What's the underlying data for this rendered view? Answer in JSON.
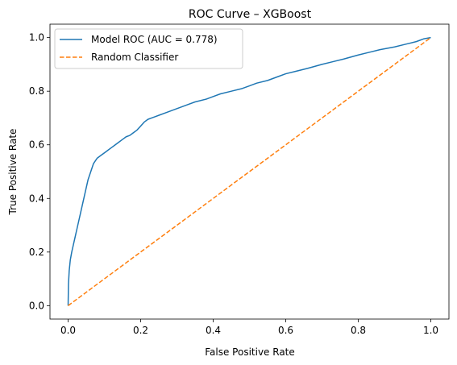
{
  "chart_data": {
    "type": "line",
    "title": "ROC Curve – XGBoost",
    "xlabel": "False Positive Rate",
    "ylabel": "True Positive Rate",
    "xlim": [
      -0.05,
      1.05
    ],
    "ylim": [
      -0.05,
      1.05
    ],
    "xticks": [
      0.0,
      0.2,
      0.4,
      0.6,
      0.8,
      1.0
    ],
    "yticks": [
      0.0,
      0.2,
      0.4,
      0.6,
      0.8,
      1.0
    ],
    "xtick_labels": [
      "0.0",
      "0.2",
      "0.4",
      "0.6",
      "0.8",
      "1.0"
    ],
    "ytick_labels": [
      "0.0",
      "0.2",
      "0.4",
      "0.6",
      "0.8",
      "1.0"
    ],
    "grid": false,
    "legend_position": "upper-left",
    "series": [
      {
        "name": "Model ROC (AUC = 0.778)",
        "color": "#1f77b4",
        "style": "solid",
        "x": [
          0.0,
          0.001,
          0.003,
          0.006,
          0.01,
          0.015,
          0.02,
          0.025,
          0.03,
          0.035,
          0.04,
          0.045,
          0.05,
          0.055,
          0.06,
          0.065,
          0.07,
          0.075,
          0.08,
          0.09,
          0.1,
          0.11,
          0.12,
          0.13,
          0.14,
          0.15,
          0.16,
          0.17,
          0.18,
          0.19,
          0.2,
          0.21,
          0.22,
          0.23,
          0.24,
          0.25,
          0.27,
          0.3,
          0.33,
          0.35,
          0.38,
          0.4,
          0.42,
          0.45,
          0.48,
          0.5,
          0.52,
          0.55,
          0.58,
          0.6,
          0.63,
          0.66,
          0.7,
          0.73,
          0.76,
          0.8,
          0.83,
          0.86,
          0.9,
          0.93,
          0.96,
          0.98,
          1.0
        ],
        "y": [
          0.0,
          0.08,
          0.13,
          0.17,
          0.2,
          0.23,
          0.26,
          0.29,
          0.32,
          0.35,
          0.38,
          0.41,
          0.44,
          0.47,
          0.49,
          0.51,
          0.53,
          0.54,
          0.55,
          0.56,
          0.57,
          0.58,
          0.59,
          0.6,
          0.61,
          0.62,
          0.63,
          0.635,
          0.645,
          0.655,
          0.67,
          0.685,
          0.695,
          0.7,
          0.705,
          0.71,
          0.72,
          0.735,
          0.75,
          0.76,
          0.77,
          0.78,
          0.79,
          0.8,
          0.81,
          0.82,
          0.83,
          0.84,
          0.855,
          0.865,
          0.875,
          0.885,
          0.9,
          0.91,
          0.92,
          0.935,
          0.945,
          0.955,
          0.965,
          0.975,
          0.985,
          0.995,
          1.0
        ]
      },
      {
        "name": "Random Classifier",
        "color": "#ff7f0e",
        "style": "dashed",
        "x": [
          0.0,
          1.0
        ],
        "y": [
          0.0,
          1.0
        ]
      }
    ]
  }
}
